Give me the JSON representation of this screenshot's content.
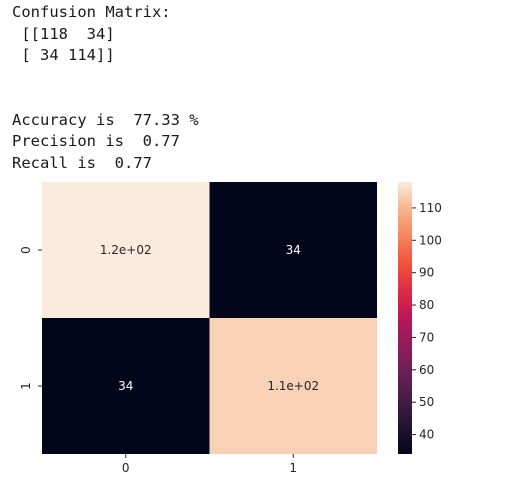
{
  "output": {
    "lines": [
      "Confusion Matrix:",
      " [[118  34]",
      " [ 34 114]]",
      "",
      "",
      "Accuracy is  77.33 %",
      "Precision is  0.77",
      "Recall is  0.77"
    ]
  },
  "chart_data": {
    "type": "heatmap",
    "title": "",
    "xlabel": "",
    "ylabel": "",
    "x_categories": [
      "0",
      "1"
    ],
    "y_categories": [
      "0",
      "1"
    ],
    "values": [
      [
        118,
        34
      ],
      [
        34,
        114
      ]
    ],
    "annotations": [
      [
        "1.2e+02",
        "34"
      ],
      [
        "34",
        "1.1e+02"
      ]
    ],
    "colormap": "rocket",
    "colorbar": {
      "range": [
        34,
        118
      ],
      "ticks": [
        110,
        100,
        90,
        80,
        70,
        60,
        50,
        40
      ]
    },
    "grid": false,
    "legend": "colorbar-right"
  }
}
